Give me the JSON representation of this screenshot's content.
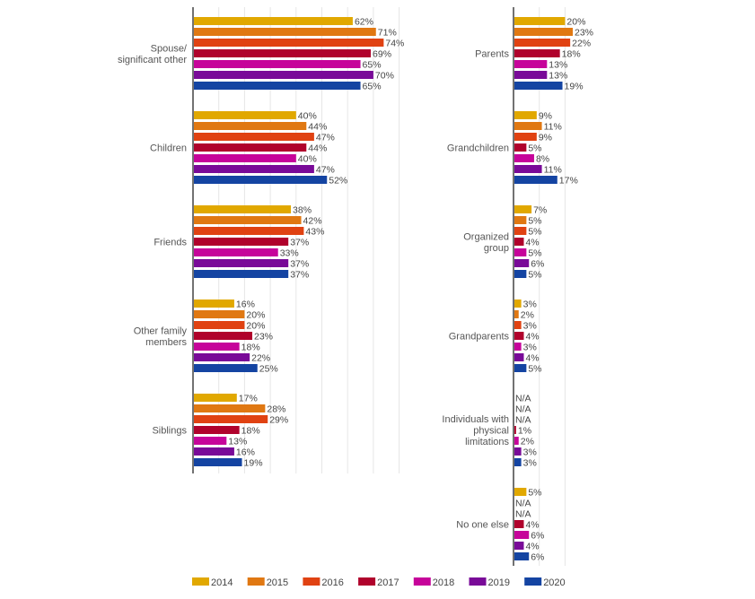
{
  "chart_data": [
    {
      "type": "bar",
      "orientation": "horizontal",
      "panel": "left",
      "title": "",
      "xlabel": "",
      "ylabel": "",
      "xlim": [
        0,
        80
      ],
      "grid": true,
      "categories": [
        [
          "Spouse/",
          "significant other"
        ],
        [
          "Children"
        ],
        [
          "Friends"
        ],
        [
          "Other family",
          "members"
        ],
        [
          "Siblings"
        ]
      ],
      "series": [
        {
          "name": "2014",
          "values": [
            62,
            40,
            38,
            16,
            17
          ]
        },
        {
          "name": "2015",
          "values": [
            71,
            44,
            42,
            20,
            28
          ]
        },
        {
          "name": "2016",
          "values": [
            74,
            47,
            43,
            20,
            29
          ]
        },
        {
          "name": "2017",
          "values": [
            69,
            44,
            37,
            23,
            18
          ]
        },
        {
          "name": "2018",
          "values": [
            65,
            40,
            33,
            18,
            13
          ]
        },
        {
          "name": "2019",
          "values": [
            70,
            47,
            37,
            22,
            16
          ]
        },
        {
          "name": "2020",
          "values": [
            65,
            52,
            37,
            25,
            19
          ]
        }
      ]
    },
    {
      "type": "bar",
      "orientation": "horizontal",
      "panel": "right",
      "title": "",
      "xlabel": "",
      "ylabel": "",
      "xlim": [
        0,
        20
      ],
      "grid": true,
      "categories": [
        [
          "Parents"
        ],
        [
          "Grandchildren"
        ],
        [
          "Organized",
          "group"
        ],
        [
          "Grandparents"
        ],
        [
          "Individuals with",
          "physical",
          "limitations"
        ],
        [
          "No one else"
        ]
      ],
      "series": [
        {
          "name": "2014",
          "values": [
            20,
            9,
            7,
            3,
            null,
            5
          ]
        },
        {
          "name": "2015",
          "values": [
            23,
            11,
            5,
            2,
            null,
            null
          ]
        },
        {
          "name": "2016",
          "values": [
            22,
            9,
            5,
            3,
            null,
            null
          ]
        },
        {
          "name": "2017",
          "values": [
            18,
            5,
            4,
            4,
            1,
            4
          ]
        },
        {
          "name": "2018",
          "values": [
            13,
            8,
            5,
            3,
            2,
            6
          ]
        },
        {
          "name": "2019",
          "values": [
            13,
            11,
            6,
            4,
            3,
            4
          ]
        },
        {
          "name": "2020",
          "values": [
            19,
            17,
            5,
            5,
            3,
            6
          ]
        }
      ],
      "missing_label": "N/A"
    }
  ],
  "value_suffix": "%",
  "legend": {
    "position": "bottom",
    "items": [
      {
        "label": "2014",
        "color": "#E1A800"
      },
      {
        "label": "2015",
        "color": "#E07812"
      },
      {
        "label": "2016",
        "color": "#E04212"
      },
      {
        "label": "2017",
        "color": "#B0022C"
      },
      {
        "label": "2018",
        "color": "#C6049A"
      },
      {
        "label": "2019",
        "color": "#790A98"
      },
      {
        "label": "2020",
        "color": "#1444A2"
      }
    ]
  }
}
